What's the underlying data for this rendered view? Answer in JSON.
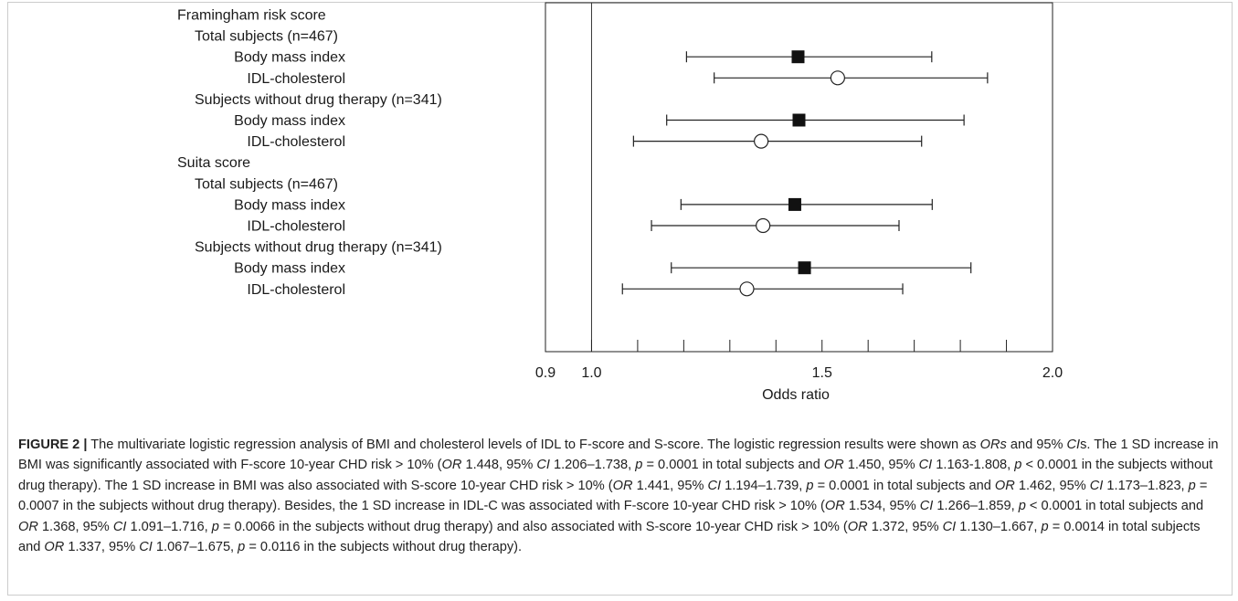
{
  "chart_data": {
    "type": "forest",
    "xlabel": "Odds ratio",
    "xlim": [
      0.9,
      2.0
    ],
    "xticks_major": [
      0.9,
      1.0,
      1.5,
      2.0
    ],
    "xticks_minor": [
      1.1,
      1.2,
      1.3,
      1.4,
      1.6,
      1.7,
      1.8,
      1.9
    ],
    "reference_line": 1.0,
    "rows": [
      {
        "label": "Framingham risk score",
        "level": 0
      },
      {
        "label": "Total subjects (n=467)",
        "level": 1
      },
      {
        "label": "Body mass index",
        "level": 2,
        "or": 1.448,
        "lo": 1.206,
        "hi": 1.738,
        "marker": "filled-square"
      },
      {
        "label": "IDL-cholesterol",
        "level": 2,
        "or": 1.534,
        "lo": 1.266,
        "hi": 1.859,
        "marker": "open-circle"
      },
      {
        "label": "Subjects without drug therapy (n=341)",
        "level": 1
      },
      {
        "label": "Body mass index",
        "level": 2,
        "or": 1.45,
        "lo": 1.163,
        "hi": 1.808,
        "marker": "filled-square"
      },
      {
        "label": "IDL-cholesterol",
        "level": 2,
        "or": 1.368,
        "lo": 1.091,
        "hi": 1.716,
        "marker": "open-circle"
      },
      {
        "label": "Suita score",
        "level": 0
      },
      {
        "label": "Total subjects (n=467)",
        "level": 1
      },
      {
        "label": "Body mass index",
        "level": 2,
        "or": 1.441,
        "lo": 1.194,
        "hi": 1.739,
        "marker": "filled-square"
      },
      {
        "label": "IDL-cholesterol",
        "level": 2,
        "or": 1.372,
        "lo": 1.13,
        "hi": 1.667,
        "marker": "open-circle"
      },
      {
        "label": "Subjects without drug therapy (n=341)",
        "level": 1
      },
      {
        "label": "Body mass index",
        "level": 2,
        "or": 1.462,
        "lo": 1.173,
        "hi": 1.823,
        "marker": "filled-square"
      },
      {
        "label": "IDL-cholesterol",
        "level": 2,
        "or": 1.337,
        "lo": 1.067,
        "hi": 1.675,
        "marker": "open-circle"
      }
    ]
  },
  "caption": {
    "label": "FIGURE 2 |",
    "segments": [
      {
        "t": " The multivariate logistic regression analysis of BMI and cholesterol levels of IDL to F-score and S-score. The logistic regression results were shown as "
      },
      {
        "t": "ORs",
        "i": true
      },
      {
        "t": " and 95% "
      },
      {
        "t": "CI",
        "i": true
      },
      {
        "t": "s. The 1 SD increase in BMI was significantly associated with F-score 10-year CHD risk > 10% ("
      },
      {
        "t": "OR",
        "i": true
      },
      {
        "t": " 1.448, 95% "
      },
      {
        "t": "CI",
        "i": true
      },
      {
        "t": " 1.206–1.738, "
      },
      {
        "t": "p",
        "i": true
      },
      {
        "t": " = 0.0001 in total subjects and "
      },
      {
        "t": "OR",
        "i": true
      },
      {
        "t": " 1.450, 95% "
      },
      {
        "t": "CI",
        "i": true
      },
      {
        "t": " 1.163-1.808, "
      },
      {
        "t": "p",
        "i": true
      },
      {
        "t": " < 0.0001 in the subjects without drug therapy). The 1 SD increase in BMI was also associated with S-score 10-year CHD risk > 10% ("
      },
      {
        "t": "OR",
        "i": true
      },
      {
        "t": " 1.441, 95% "
      },
      {
        "t": "CI",
        "i": true
      },
      {
        "t": " 1.194–1.739, "
      },
      {
        "t": "p",
        "i": true
      },
      {
        "t": " = 0.0001 in total subjects and "
      },
      {
        "t": "OR",
        "i": true
      },
      {
        "t": " 1.462, 95% "
      },
      {
        "t": "CI",
        "i": true
      },
      {
        "t": " 1.173–1.823, "
      },
      {
        "t": "p",
        "i": true
      },
      {
        "t": " = 0.0007 in the subjects without drug therapy). Besides, the 1 SD increase in IDL-C was associated with F-score 10-year CHD risk > 10% ("
      },
      {
        "t": "OR",
        "i": true
      },
      {
        "t": " 1.534, 95% "
      },
      {
        "t": "CI",
        "i": true
      },
      {
        "t": " 1.266–1.859, "
      },
      {
        "t": "p",
        "i": true
      },
      {
        "t": " < 0.0001 in total subjects and "
      },
      {
        "t": "OR",
        "i": true
      },
      {
        "t": " 1.368, 95% "
      },
      {
        "t": "CI",
        "i": true
      },
      {
        "t": " 1.091–1.716, "
      },
      {
        "t": "p",
        "i": true
      },
      {
        "t": " = 0.0066 in the subjects without drug therapy) and also associated with S-score 10-year CHD risk > 10% ("
      },
      {
        "t": "OR",
        "i": true
      },
      {
        "t": " 1.372, 95% "
      },
      {
        "t": "CI",
        "i": true
      },
      {
        "t": " 1.130–1.667, "
      },
      {
        "t": "p",
        "i": true
      },
      {
        "t": " = 0.0014 in total subjects and "
      },
      {
        "t": "OR",
        "i": true
      },
      {
        "t": " 1.337, 95% "
      },
      {
        "t": "CI",
        "i": true
      },
      {
        "t": " 1.067–1.675, "
      },
      {
        "t": "p",
        "i": true
      },
      {
        "t": " = 0.0116 in the subjects without drug therapy)."
      }
    ]
  }
}
